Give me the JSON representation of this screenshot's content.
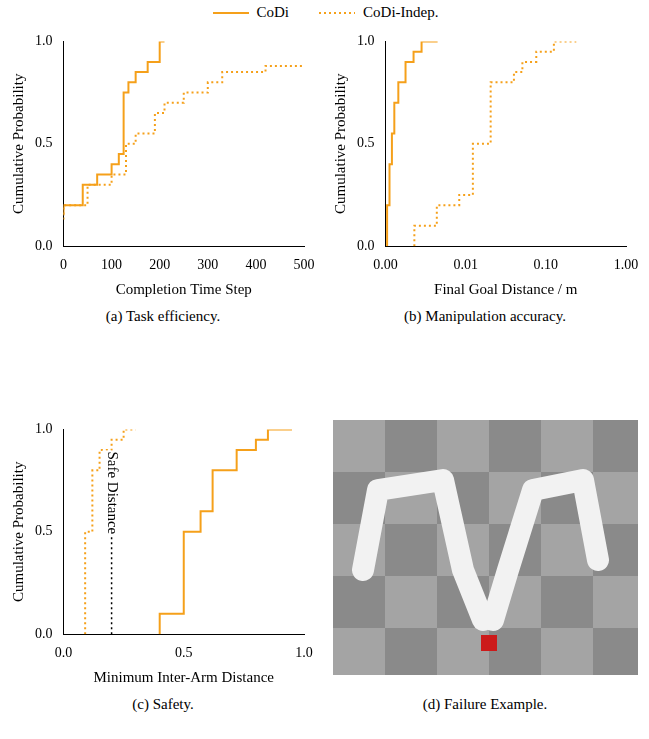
{
  "legend": "top",
  "chart_data": [
    {
      "type": "line",
      "caption": "(a) Task efficiency.",
      "x_label": "Completion Time Step",
      "y_label": "Cumulative Probability",
      "xlim": [
        0,
        500
      ],
      "xticks": [
        0,
        100,
        200,
        300,
        400,
        500
      ],
      "ylim": [
        0,
        1
      ],
      "yticks": [
        {
          "value": 0,
          "label": "0.0"
        },
        {
          "value": 0.5,
          "label": "0.5"
        },
        {
          "value": 1,
          "label": "1.0"
        }
      ],
      "grid": false,
      "series": [
        {
          "name": "CoDi",
          "color": "#f5a01a",
          "line_style": "solid",
          "x": [
            0,
            40,
            70,
            100,
            115,
            125,
            135,
            150,
            175,
            200,
            210
          ],
          "values": [
            0.15,
            0.2,
            0.3,
            0.35,
            0.4,
            0.45,
            0.75,
            0.8,
            0.85,
            0.9,
            1.0
          ]
        },
        {
          "name": "CoDi-Indep.",
          "color": "#f5a01a",
          "line_style": "dotted",
          "x": [
            0,
            50,
            100,
            130,
            150,
            190,
            210,
            250,
            300,
            330,
            420,
            500
          ],
          "values": [
            0.13,
            0.2,
            0.3,
            0.35,
            0.5,
            0.55,
            0.65,
            0.7,
            0.75,
            0.8,
            0.85,
            0.88
          ]
        }
      ]
    },
    {
      "type": "line",
      "caption": "(b) Manipulation accuracy.",
      "x_label": "Final Goal Distance / m",
      "y_label": "Cumulative Probability",
      "log": "x",
      "xlim": [
        0,
        1
      ],
      "xticks": [
        {
          "value": 0,
          "label": "0.00"
        },
        {
          "value": 0.01,
          "label": "0.01"
        },
        {
          "value": 0.1,
          "label": "0.10"
        },
        {
          "value": 1,
          "label": "1.00"
        }
      ],
      "ylim": [
        0,
        1
      ],
      "yticks": [
        {
          "value": 0,
          "label": "0.0"
        },
        {
          "value": 0.5,
          "label": "0.5"
        },
        {
          "value": 1,
          "label": "1.0"
        }
      ],
      "grid": false,
      "series": [
        {
          "name": "CoDi",
          "color": "#f5a01a",
          "line_style": "solid",
          "x": [
            0.0002,
            0.0005,
            0.0008,
            0.0011,
            0.0016,
            0.0025,
            0.0035,
            0.0045,
            0.0065
          ],
          "values": [
            0,
            0.2,
            0.4,
            0.55,
            0.7,
            0.8,
            0.9,
            0.95,
            1.0
          ]
        },
        {
          "name": "CoDi-Indep.",
          "color": "#f5a01a",
          "line_style": "dotted",
          "x": [
            0.0036,
            0.0064,
            0.0092,
            0.0123,
            0.0205,
            0.04,
            0.051,
            0.076,
            0.126,
            0.24
          ],
          "values": [
            0,
            0.1,
            0.2,
            0.25,
            0.5,
            0.8,
            0.85,
            0.9,
            0.95,
            1.0
          ]
        }
      ]
    },
    {
      "type": "line",
      "caption": "(c) Safety.",
      "x_label": "Minimum Inter-Arm Distance",
      "y_label": "Cumulative Probability",
      "xlim": [
        0,
        1
      ],
      "xticks": [
        {
          "value": 0,
          "label": "0.0"
        },
        {
          "value": 0.5,
          "label": "0.5"
        },
        {
          "value": 1,
          "label": "1.0"
        }
      ],
      "ylim": [
        0,
        1
      ],
      "yticks": [
        {
          "value": 0,
          "label": "0.0"
        },
        {
          "value": 0.5,
          "label": "0.5"
        },
        {
          "value": 1,
          "label": "1.0"
        }
      ],
      "grid": false,
      "annotations": [
        {
          "x": 0.2,
          "label": "Safe Distance"
        }
      ],
      "series": [
        {
          "name": "CoDi",
          "color": "#f5a01a",
          "line_style": "solid",
          "x": [
            0.4,
            0.5,
            0.57,
            0.62,
            0.72,
            0.8,
            0.85,
            0.95
          ],
          "values": [
            0,
            0.1,
            0.5,
            0.6,
            0.8,
            0.9,
            0.95,
            1.0
          ]
        },
        {
          "name": "CoDi-Indep.",
          "color": "#f5a01a",
          "line_style": "dotted",
          "x": [
            0.09,
            0.12,
            0.15,
            0.2,
            0.25,
            0.3
          ],
          "values": [
            0,
            0.5,
            0.8,
            0.9,
            0.95,
            1.0
          ]
        }
      ]
    }
  ],
  "image_panel": {
    "caption": "(d) Failure Example."
  }
}
